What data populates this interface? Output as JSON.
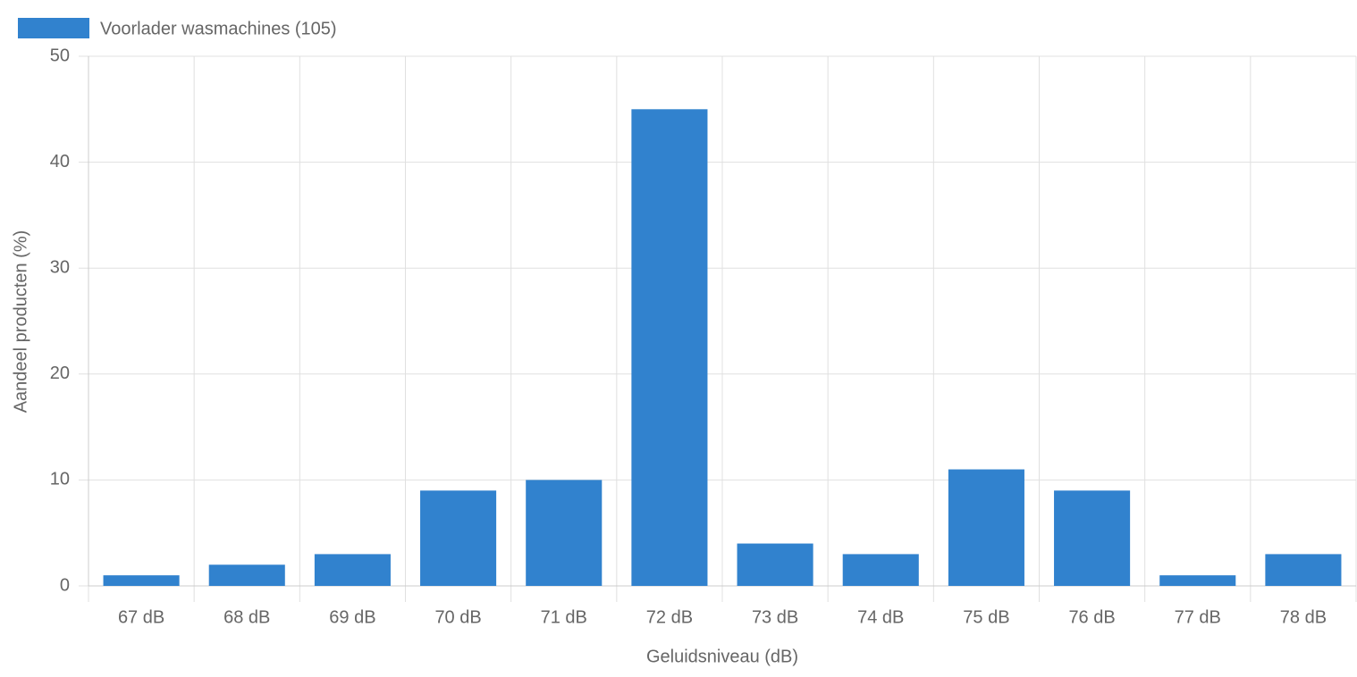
{
  "chart_data": {
    "type": "bar",
    "categories": [
      "67 dB",
      "68 dB",
      "69 dB",
      "70 dB",
      "71 dB",
      "72 dB",
      "73 dB",
      "74 dB",
      "75 dB",
      "76 dB",
      "77 dB",
      "78 dB"
    ],
    "series": [
      {
        "name": "Voorlader wasmachines (105)",
        "color": "#3182ce",
        "values": [
          1,
          2,
          3,
          9,
          10,
          45,
          4,
          3,
          11,
          9,
          1,
          3
        ]
      }
    ],
    "x_label": "Geluidsniveau (dB)",
    "y_label": "Aandeel producten (%)",
    "ylim": [
      0,
      50
    ],
    "yticks": [
      0,
      10,
      20,
      30,
      40,
      50
    ],
    "grid": true
  }
}
